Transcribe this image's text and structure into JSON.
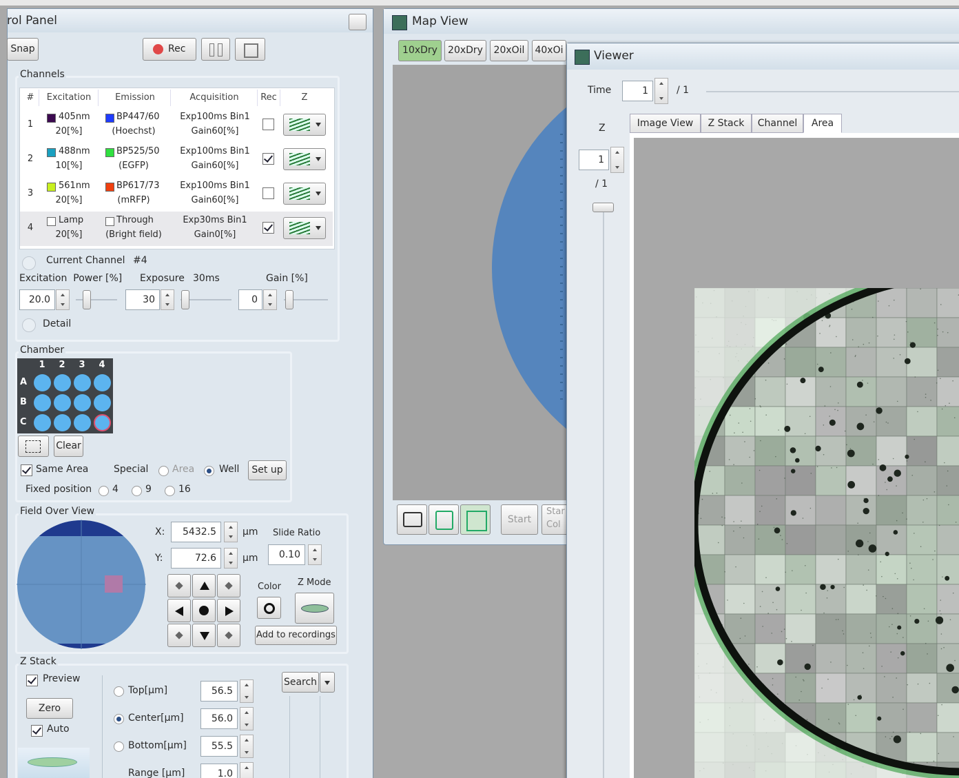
{
  "control_panel": {
    "title": "rol Panel",
    "toolbar": {
      "snap": "Snap",
      "rec": "Rec"
    },
    "channels": {
      "title": "Channels",
      "headers": [
        "#",
        "Excitation",
        "Emission",
        "Acquisition",
        "Rec",
        "Z"
      ],
      "rows": [
        {
          "number": "1",
          "excitation": "405nm",
          "power": "20[%]",
          "excitation_color": "#3c0a50",
          "emission": "BP447/60",
          "dye": "(Hoechst)",
          "emission_color": "#1f3cff",
          "acquisition": "Exp100ms Bin1",
          "gain": "Gain60[%]",
          "rec": false
        },
        {
          "number": "2",
          "excitation": "488nm",
          "power": "10[%]",
          "excitation_color": "#1aa0c0",
          "emission": "BP525/50",
          "dye": "(EGFP)",
          "emission_color": "#30e040",
          "acquisition": "Exp100ms Bin1",
          "gain": "Gain60[%]",
          "rec": true
        },
        {
          "number": "3",
          "excitation": "561nm",
          "power": "20[%]",
          "excitation_color": "#c8f020",
          "emission": "BP617/73",
          "dye": "(mRFP)",
          "emission_color": "#f04010",
          "acquisition": "Exp100ms Bin1",
          "gain": "Gain60[%]",
          "rec": false
        },
        {
          "number": "4",
          "excitation": "Lamp",
          "power": "20[%]",
          "excitation_color": "#ffffff",
          "emission": "Through",
          "dye": "(Bright field)",
          "emission_color": "#ffffff",
          "acquisition": "Exp30ms Bin1",
          "gain": "Gain0[%]",
          "rec": true
        }
      ],
      "current_channel_label": "Current Channel",
      "current_channel": "#4",
      "power_label": "Excitation  Power [%]",
      "exposure_label": "Exposure",
      "exposure_value": "30ms",
      "gain_label": "Gain [%]",
      "power": "20.0",
      "exposure": "30",
      "gain": "0",
      "detail": "Detail"
    },
    "chamber": {
      "title": "Chamber",
      "columns": [
        "1",
        "2",
        "3",
        "4"
      ],
      "rows": [
        "A",
        "B",
        "C"
      ],
      "clear": "Clear",
      "same_area": "Same Area",
      "same_area_checked": true,
      "special": "Special",
      "area": "Area",
      "area_selected": false,
      "well": "Well",
      "well_selected": true,
      "set_up": "Set up",
      "fixed_position": "Fixed position",
      "positions": [
        "4",
        "9",
        "16"
      ]
    },
    "field_over_view": {
      "title": "Field Over View",
      "x_label": "X:",
      "x": "5432.5",
      "y_label": "Y:",
      "y": "72.6",
      "unit": "µm",
      "slide_ratio_label": "Slide Ratio",
      "slide_ratio": "0.10",
      "color": "Color",
      "z_mode": "Z Mode",
      "add": "Add to recordings"
    },
    "z_stack": {
      "title": "Z Stack",
      "preview": "Preview",
      "preview_checked": true,
      "zero": "Zero",
      "auto": "Auto",
      "auto_checked": true,
      "fields": [
        {
          "label": "Top[µm]",
          "value": "56.5",
          "selected": false
        },
        {
          "label": "Center[µm]",
          "value": "56.0",
          "selected": true
        },
        {
          "label": "Bottom[µm]",
          "value": "55.5",
          "selected": false
        },
        {
          "label": "Range [µm]",
          "value": "1.0"
        }
      ],
      "search": "Search"
    }
  },
  "map_view": {
    "title": "Map View",
    "objectives": [
      "10xDry",
      "20xDry",
      "20xOil",
      "40xOi"
    ],
    "selected_objective": 0,
    "start": "Start",
    "start_color": [
      "Star",
      "Col"
    ]
  },
  "viewer": {
    "title": "Viewer",
    "time_label": "Time",
    "time": "1",
    "time_total": "/ 1",
    "z_label": "Z",
    "z": "1",
    "z_total": "/ 1",
    "tabs": [
      "Image View",
      "Z Stack",
      "Channel",
      "Area"
    ],
    "selected_tab": 3
  }
}
